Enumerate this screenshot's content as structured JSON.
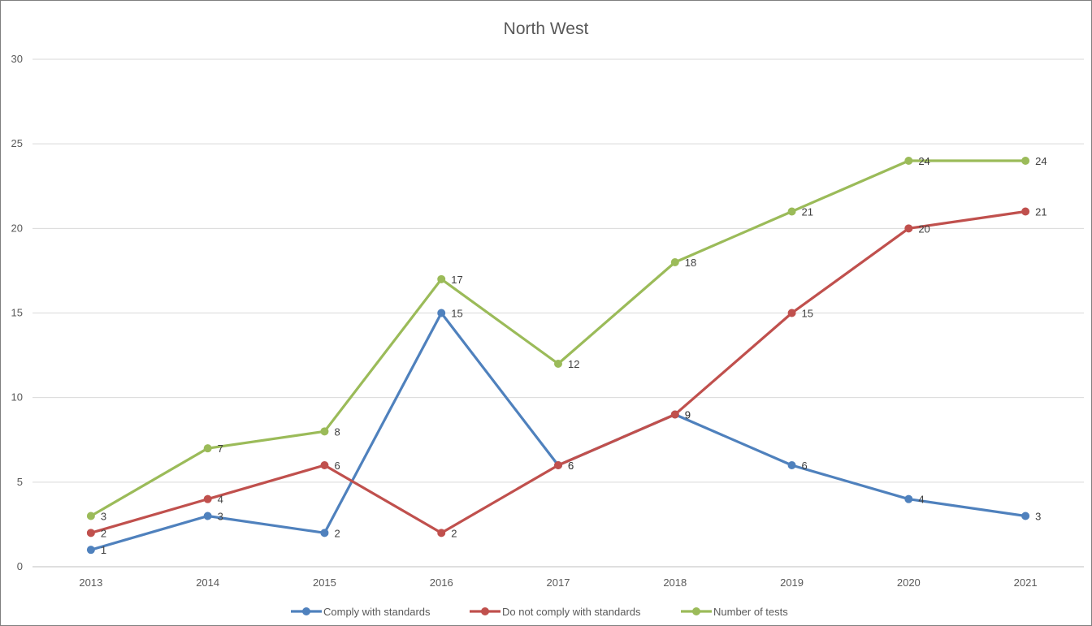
{
  "chart_data": {
    "type": "line",
    "title": "North West",
    "xlabel": "",
    "ylabel": "",
    "ylim": [
      0,
      30
    ],
    "yticks": [
      "0",
      "5",
      "10",
      "15",
      "20",
      "25",
      "30"
    ],
    "categories": [
      "2013",
      "2014",
      "2015",
      "2016",
      "2017",
      "2018",
      "2019",
      "2020",
      "2021"
    ],
    "grid": "horizontal",
    "legend_position": "bottom",
    "data_labels": true,
    "series": [
      {
        "name": "Comply with standards",
        "color": "#4f81bd",
        "values": [
          1,
          3,
          2,
          15,
          6,
          9,
          6,
          4,
          3
        ]
      },
      {
        "name": "Do not comply with standards",
        "color": "#c0504d",
        "values": [
          2,
          4,
          6,
          2,
          6,
          9,
          15,
          20,
          21
        ]
      },
      {
        "name": "Number of tests",
        "color": "#9bbb59",
        "values": [
          3,
          7,
          8,
          17,
          12,
          18,
          21,
          24,
          24
        ]
      }
    ]
  }
}
